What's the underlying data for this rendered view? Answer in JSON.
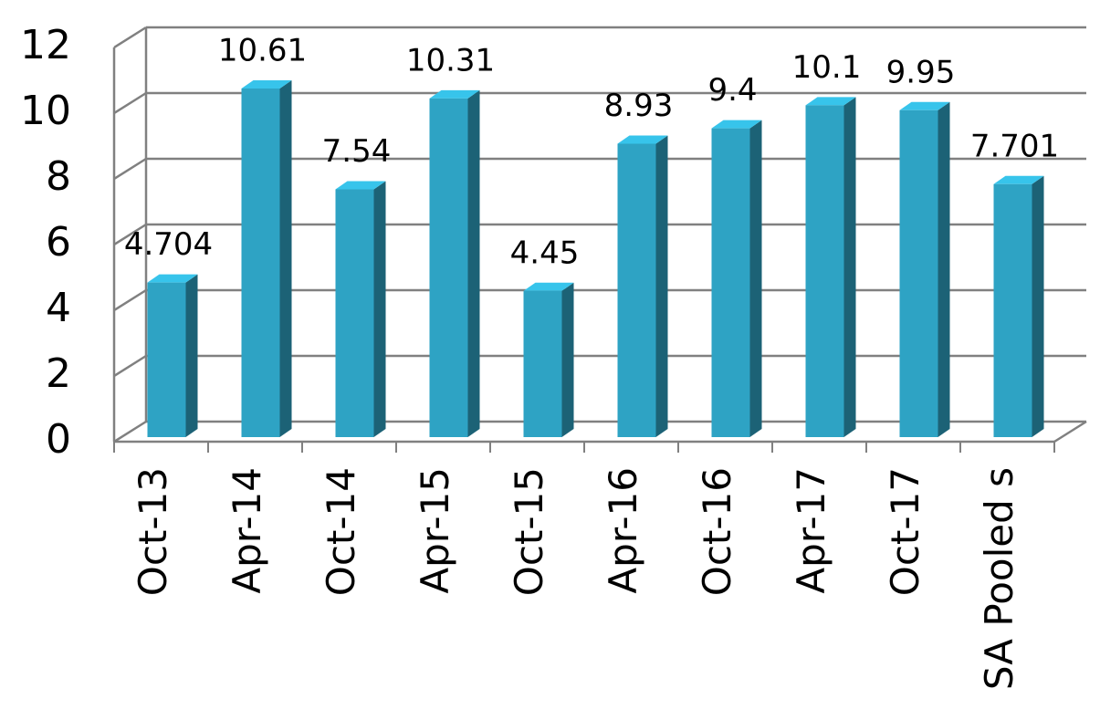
{
  "chart_data": {
    "type": "bar3d",
    "categories": [
      "Oct-13",
      "Apr-14",
      "Oct-14",
      "Apr-15",
      "Oct-15",
      "Apr-16",
      "Oct-16",
      "Apr-17",
      "Oct-17",
      "SA Pooled s"
    ],
    "values": [
      4.704,
      10.61,
      7.54,
      10.31,
      4.45,
      8.93,
      9.4,
      10.1,
      9.95,
      7.701
    ],
    "color": "#2ea3c4",
    "ylim": [
      0,
      12
    ],
    "yticks": [
      0,
      2,
      4,
      6,
      8,
      10,
      12
    ],
    "grid": true
  }
}
